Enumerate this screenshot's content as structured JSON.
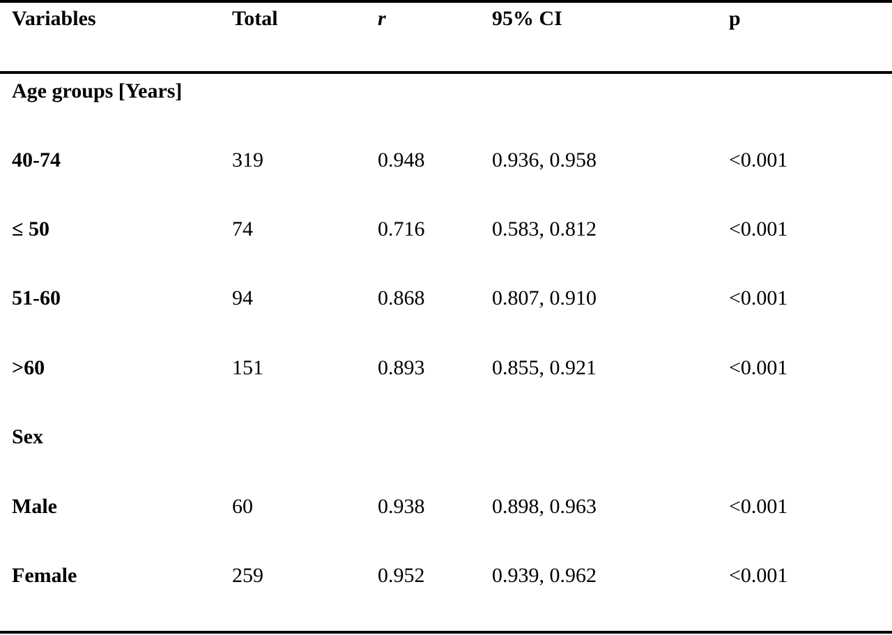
{
  "header": {
    "variables": "Variables",
    "total": "Total",
    "r": "r",
    "ci": "95% CI",
    "p": "p"
  },
  "rows": [
    {
      "variable": "Age groups [Years]",
      "total": "",
      "r": "",
      "ci": "",
      "p": ""
    },
    {
      "variable": "40-74",
      "total": "319",
      "r": "0.948",
      "ci": "0.936, 0.958",
      "p": "<0.001"
    },
    {
      "variable": "≤ 50",
      "total": "74",
      "r": "0.716",
      "ci": "0.583, 0.812",
      "p": "<0.001"
    },
    {
      "variable": "51-60",
      "total": "94",
      "r": "0.868",
      "ci": "0.807, 0.910",
      "p": "<0.001"
    },
    {
      "variable": ">60",
      "total": "151",
      "r": "0.893",
      "ci": "0.855, 0.921",
      "p": "<0.001"
    },
    {
      "variable": "Sex",
      "total": "",
      "r": "",
      "ci": "",
      "p": ""
    },
    {
      "variable": "Male",
      "total": "60",
      "r": "0.938",
      "ci": "0.898, 0.963",
      "p": "<0.001"
    },
    {
      "variable": "Female",
      "total": "259",
      "r": "0.952",
      "ci": "0.939, 0.962",
      "p": "<0.001"
    }
  ]
}
